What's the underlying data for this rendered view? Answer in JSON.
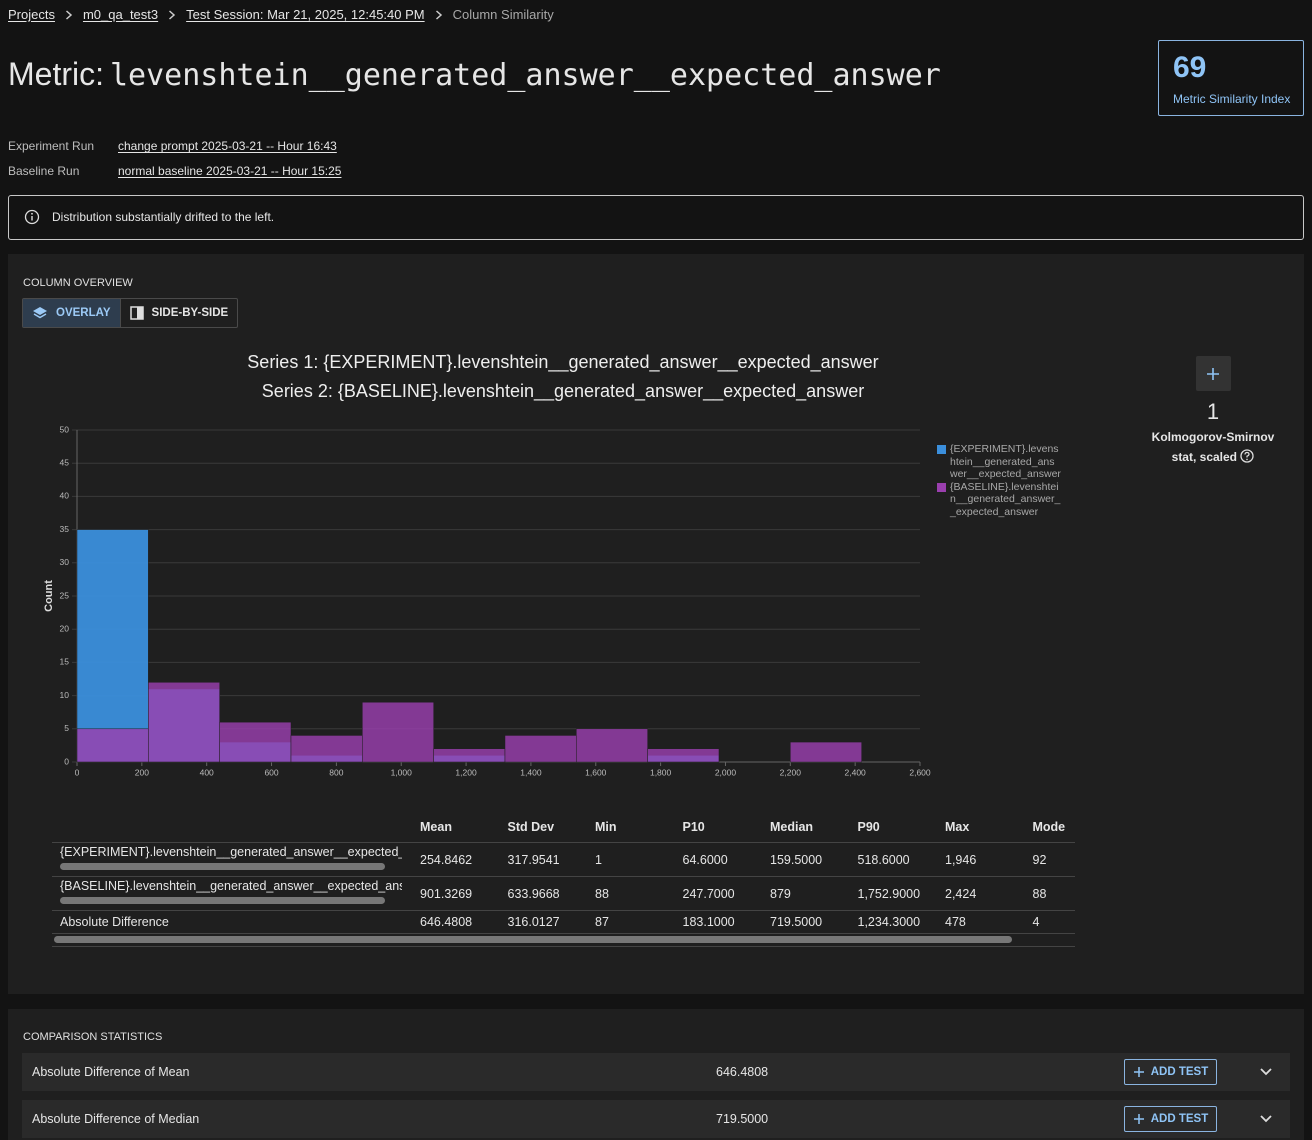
{
  "breadcrumb": [
    "Projects",
    "m0_qa_test3",
    "Test Session: Mar 21, 2025, 12:45:40 PM",
    "Column Similarity"
  ],
  "header": {
    "label": "Metric:",
    "metric": "levenshtein__generated_answer__expected_answer"
  },
  "score": {
    "value": 69,
    "label": "Metric Similarity Index"
  },
  "runs": [
    {
      "label": "Experiment Run",
      "value": "change prompt 2025-03-21 -- Hour 16:43"
    },
    {
      "label": "Baseline Run",
      "value": "normal baseline 2025-03-21 -- Hour 15:25"
    }
  ],
  "alert": "Distribution substantially drifted to the left.",
  "overview": {
    "title": "COLUMN OVERVIEW",
    "tabs": [
      "OVERLAY",
      "SIDE-BY-SIDE"
    ]
  },
  "chart_data": {
    "type": "histogram",
    "title": "Series 1: {EXPERIMENT}.levenshtein__generated_answer__expected_answer",
    "subtitle": "Series 2: {BASELINE}.levenshtein__generated_answer__expected_answer",
    "y_label": "Count",
    "bins": [
      0,
      220,
      440,
      660,
      880,
      1100,
      1320,
      1540,
      1760,
      1980,
      2200,
      2420
    ],
    "series": [
      {
        "name": "{EXPERIMENT}.levenshtein__generated_answer__expected_answer",
        "color": "#3b8fdc",
        "values": [
          35,
          11,
          3,
          1,
          0,
          1,
          0,
          0,
          1,
          0,
          0
        ]
      },
      {
        "name": "{BASELINE}.levenshtein__generated_answer__expected_answer",
        "color": "#9a3fae",
        "values": [
          5,
          12,
          6,
          4,
          9,
          2,
          4,
          5,
          2,
          0,
          3
        ]
      }
    ],
    "xlim": [
      0,
      2600
    ],
    "xticks": [
      0,
      200,
      400,
      600,
      800,
      {
        "value": 1000,
        "label": "1,000"
      },
      {
        "value": 1200,
        "label": "1,200"
      },
      {
        "value": 1400,
        "label": "1,400"
      },
      {
        "value": 1600,
        "label": "1,600"
      },
      {
        "value": 1800,
        "label": "1,800"
      },
      {
        "value": 2000,
        "label": "2,000"
      },
      {
        "value": 2200,
        "label": "2,200"
      },
      {
        "value": 2400,
        "label": "2,400"
      },
      {
        "value": 2600,
        "label": "2,600"
      }
    ],
    "ylim": [
      0,
      50
    ],
    "yticks": [
      0,
      5,
      10,
      15,
      20,
      25,
      30,
      35,
      40,
      45,
      50
    ],
    "grid": true,
    "legend": "right"
  },
  "ks_stat": {
    "value": 1,
    "label": "Kolmogorov-Smirnov stat, scaled"
  },
  "stats_table": {
    "columns": [
      "Mean",
      "Std Dev",
      "Min",
      "P10",
      "Median",
      "P90",
      "Max",
      "Mode"
    ],
    "rows": [
      [
        "{EXPERIMENT}.levenshtein__generated_answer__expected_answer",
        "254.8462",
        "317.9541",
        "1",
        "64.6000",
        "159.5000",
        "518.6000",
        "1,946",
        "92"
      ],
      [
        "{BASELINE}.levenshtein__generated_answer__expected_answer",
        "901.3269",
        "633.9668",
        "88",
        "247.7000",
        "879",
        "1,752.9000",
        "2,424",
        "88"
      ],
      [
        "Absolute Difference",
        "646.4808",
        "316.0127",
        "87",
        "183.1000",
        "719.5000",
        "1,234.3000",
        "478",
        "4"
      ]
    ]
  },
  "comparison": {
    "title": "COMPARISON STATISTICS",
    "button": "ADD TEST",
    "rows": [
      [
        "Absolute Difference of Mean",
        "646.4808"
      ],
      [
        "Absolute Difference of Median",
        "719.5000"
      ]
    ]
  }
}
